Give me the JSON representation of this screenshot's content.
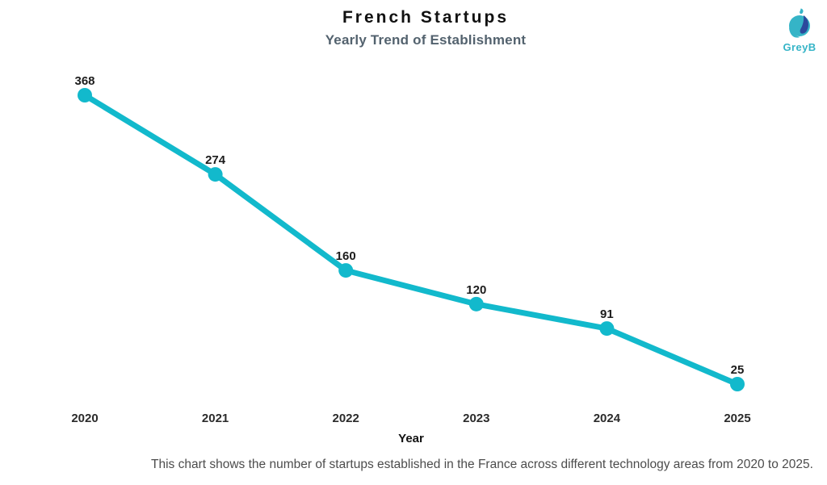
{
  "logo": {
    "text": "GreyB",
    "colors": {
      "teal": "#35b4c7",
      "blue": "#2c4a9c"
    }
  },
  "chart_data": {
    "type": "line",
    "categories": [
      "2020",
      "2021",
      "2022",
      "2023",
      "2024",
      "2025"
    ],
    "values": [
      368,
      274,
      160,
      120,
      91,
      25
    ],
    "title": "French Startups",
    "subtitle": "Yearly Trend of Establishment",
    "xlabel": "Year",
    "ylabel": "",
    "line_color": "#12b9cc",
    "marker": "circle",
    "marker_radius": 9,
    "line_width": 7,
    "grid": false,
    "legend": false,
    "data_labels": true,
    "ylim": [
      0,
      400
    ]
  },
  "caption": "This chart shows the number of startups established in the France across different technology areas from 2020 to 2025."
}
